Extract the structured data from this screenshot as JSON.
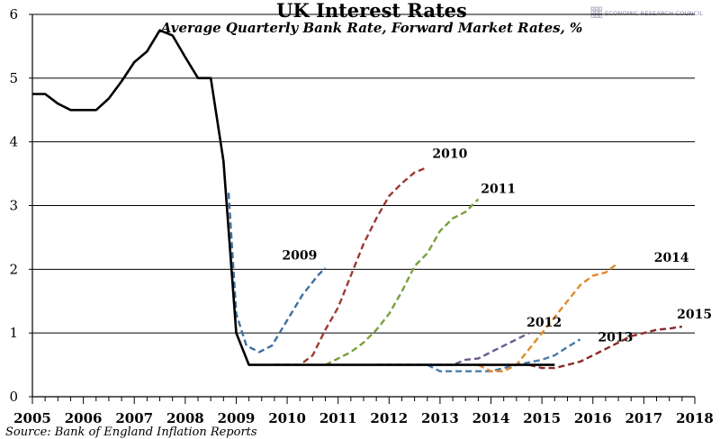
{
  "chart_data": {
    "type": "line",
    "title": "UK Interest Rates",
    "subtitle": "Average Quarterly Bank Rate, Forward Market Rates, %",
    "source": "Source: Bank of England Inflation Reports",
    "logo_text": "ECONOMIC RESEARCH COUNCIL",
    "xlim": [
      2005,
      2018
    ],
    "ylim": [
      0,
      6
    ],
    "x_ticks": [
      "2005",
      "2006",
      "2007",
      "2008",
      "2009",
      "2010",
      "2011",
      "2012",
      "2013",
      "2014",
      "2015",
      "2016",
      "2017",
      "2018"
    ],
    "y_ticks": [
      "0",
      "1",
      "2",
      "3",
      "4",
      "5",
      "6"
    ],
    "grid": "horizontal",
    "series": [
      {
        "style": "solid",
        "color": "#000000",
        "points": [
          [
            2005.0,
            4.75
          ],
          [
            2005.25,
            4.75
          ],
          [
            2005.5,
            4.6
          ],
          [
            2005.75,
            4.5
          ],
          [
            2006.0,
            4.5
          ],
          [
            2006.25,
            4.5
          ],
          [
            2006.5,
            4.68
          ],
          [
            2006.75,
            4.95
          ],
          [
            2007.0,
            5.25
          ],
          [
            2007.25,
            5.42
          ],
          [
            2007.5,
            5.75
          ],
          [
            2007.75,
            5.67
          ],
          [
            2008.0,
            5.33
          ],
          [
            2008.25,
            5.0
          ],
          [
            2008.5,
            5.0
          ],
          [
            2008.75,
            3.7
          ],
          [
            2009.0,
            1.0
          ],
          [
            2009.25,
            0.5
          ],
          [
            2009.5,
            0.5
          ],
          [
            2010.0,
            0.5
          ],
          [
            2011.0,
            0.5
          ],
          [
            2012.0,
            0.5
          ],
          [
            2013.0,
            0.5
          ],
          [
            2014.0,
            0.5
          ],
          [
            2015.0,
            0.5
          ],
          [
            2015.25,
            0.5
          ]
        ]
      },
      {
        "name": "2009",
        "style": "dashed",
        "color": "#3f6e9e",
        "label_at": [
          2009.9,
          2.15
        ],
        "points": [
          [
            2008.85,
            3.2
          ],
          [
            2009.0,
            1.3
          ],
          [
            2009.2,
            0.8
          ],
          [
            2009.45,
            0.7
          ],
          [
            2009.7,
            0.8
          ],
          [
            2010.0,
            1.2
          ],
          [
            2010.3,
            1.6
          ],
          [
            2010.6,
            1.9
          ],
          [
            2010.75,
            2.02
          ]
        ]
      },
      {
        "name": "2010",
        "style": "dashed",
        "color": "#9e3b32",
        "label_at": [
          2012.85,
          3.75
        ],
        "points": [
          [
            2009.75,
            0.5
          ],
          [
            2010.25,
            0.5
          ],
          [
            2010.5,
            0.65
          ],
          [
            2010.75,
            1.05
          ],
          [
            2011.0,
            1.4
          ],
          [
            2011.25,
            1.9
          ],
          [
            2011.5,
            2.4
          ],
          [
            2011.75,
            2.8
          ],
          [
            2012.0,
            3.15
          ],
          [
            2012.25,
            3.35
          ],
          [
            2012.5,
            3.52
          ],
          [
            2012.75,
            3.6
          ]
        ]
      },
      {
        "name": "2011",
        "style": "dashed",
        "color": "#7aa03b",
        "label_at": [
          2013.8,
          3.2
        ],
        "points": [
          [
            2010.75,
            0.5
          ],
          [
            2011.0,
            0.6
          ],
          [
            2011.25,
            0.7
          ],
          [
            2011.5,
            0.85
          ],
          [
            2011.75,
            1.05
          ],
          [
            2012.0,
            1.3
          ],
          [
            2012.25,
            1.65
          ],
          [
            2012.5,
            2.05
          ],
          [
            2012.75,
            2.25
          ],
          [
            2013.0,
            2.6
          ],
          [
            2013.25,
            2.8
          ],
          [
            2013.5,
            2.9
          ],
          [
            2013.75,
            3.1
          ]
        ]
      },
      {
        "name": "2012",
        "style": "dashed",
        "color": "#6b5a8e",
        "label_at": [
          2014.7,
          1.1
        ],
        "points": [
          [
            2011.75,
            0.5
          ],
          [
            2012.25,
            0.5
          ],
          [
            2012.75,
            0.5
          ],
          [
            2013.25,
            0.5
          ],
          [
            2013.5,
            0.58
          ],
          [
            2013.75,
            0.6
          ],
          [
            2014.0,
            0.7
          ],
          [
            2014.25,
            0.8
          ],
          [
            2014.5,
            0.9
          ],
          [
            2014.75,
            1.0
          ]
        ]
      },
      {
        "name": "2013",
        "style": "dashed",
        "color": "#4a7ba8",
        "label_at": [
          2016.1,
          0.87
        ],
        "points": [
          [
            2012.75,
            0.5
          ],
          [
            2013.0,
            0.4
          ],
          [
            2013.5,
            0.4
          ],
          [
            2014.0,
            0.4
          ],
          [
            2014.5,
            0.5
          ],
          [
            2015.0,
            0.58
          ],
          [
            2015.25,
            0.65
          ],
          [
            2015.5,
            0.78
          ],
          [
            2015.75,
            0.9
          ]
        ]
      },
      {
        "name": "2014",
        "style": "dashed",
        "color": "#e08a2c",
        "label_at": [
          2017.2,
          2.12
        ],
        "points": [
          [
            2013.75,
            0.5
          ],
          [
            2014.0,
            0.4
          ],
          [
            2014.25,
            0.4
          ],
          [
            2014.5,
            0.5
          ],
          [
            2014.75,
            0.75
          ],
          [
            2015.0,
            1.0
          ],
          [
            2015.25,
            1.25
          ],
          [
            2015.5,
            1.5
          ],
          [
            2015.75,
            1.75
          ],
          [
            2016.0,
            1.9
          ],
          [
            2016.25,
            1.95
          ],
          [
            2016.5,
            2.1
          ]
        ]
      },
      {
        "name": "2015",
        "style": "dashed",
        "color": "#8a2a2a",
        "label_at": [
          2017.65,
          1.23
        ],
        "points": [
          [
            2014.75,
            0.5
          ],
          [
            2015.0,
            0.45
          ],
          [
            2015.25,
            0.45
          ],
          [
            2015.5,
            0.5
          ],
          [
            2015.75,
            0.55
          ],
          [
            2016.0,
            0.65
          ],
          [
            2016.25,
            0.75
          ],
          [
            2016.5,
            0.85
          ],
          [
            2016.75,
            0.95
          ],
          [
            2017.0,
            1.0
          ],
          [
            2017.25,
            1.05
          ],
          [
            2017.5,
            1.07
          ],
          [
            2017.75,
            1.1
          ]
        ]
      }
    ]
  }
}
